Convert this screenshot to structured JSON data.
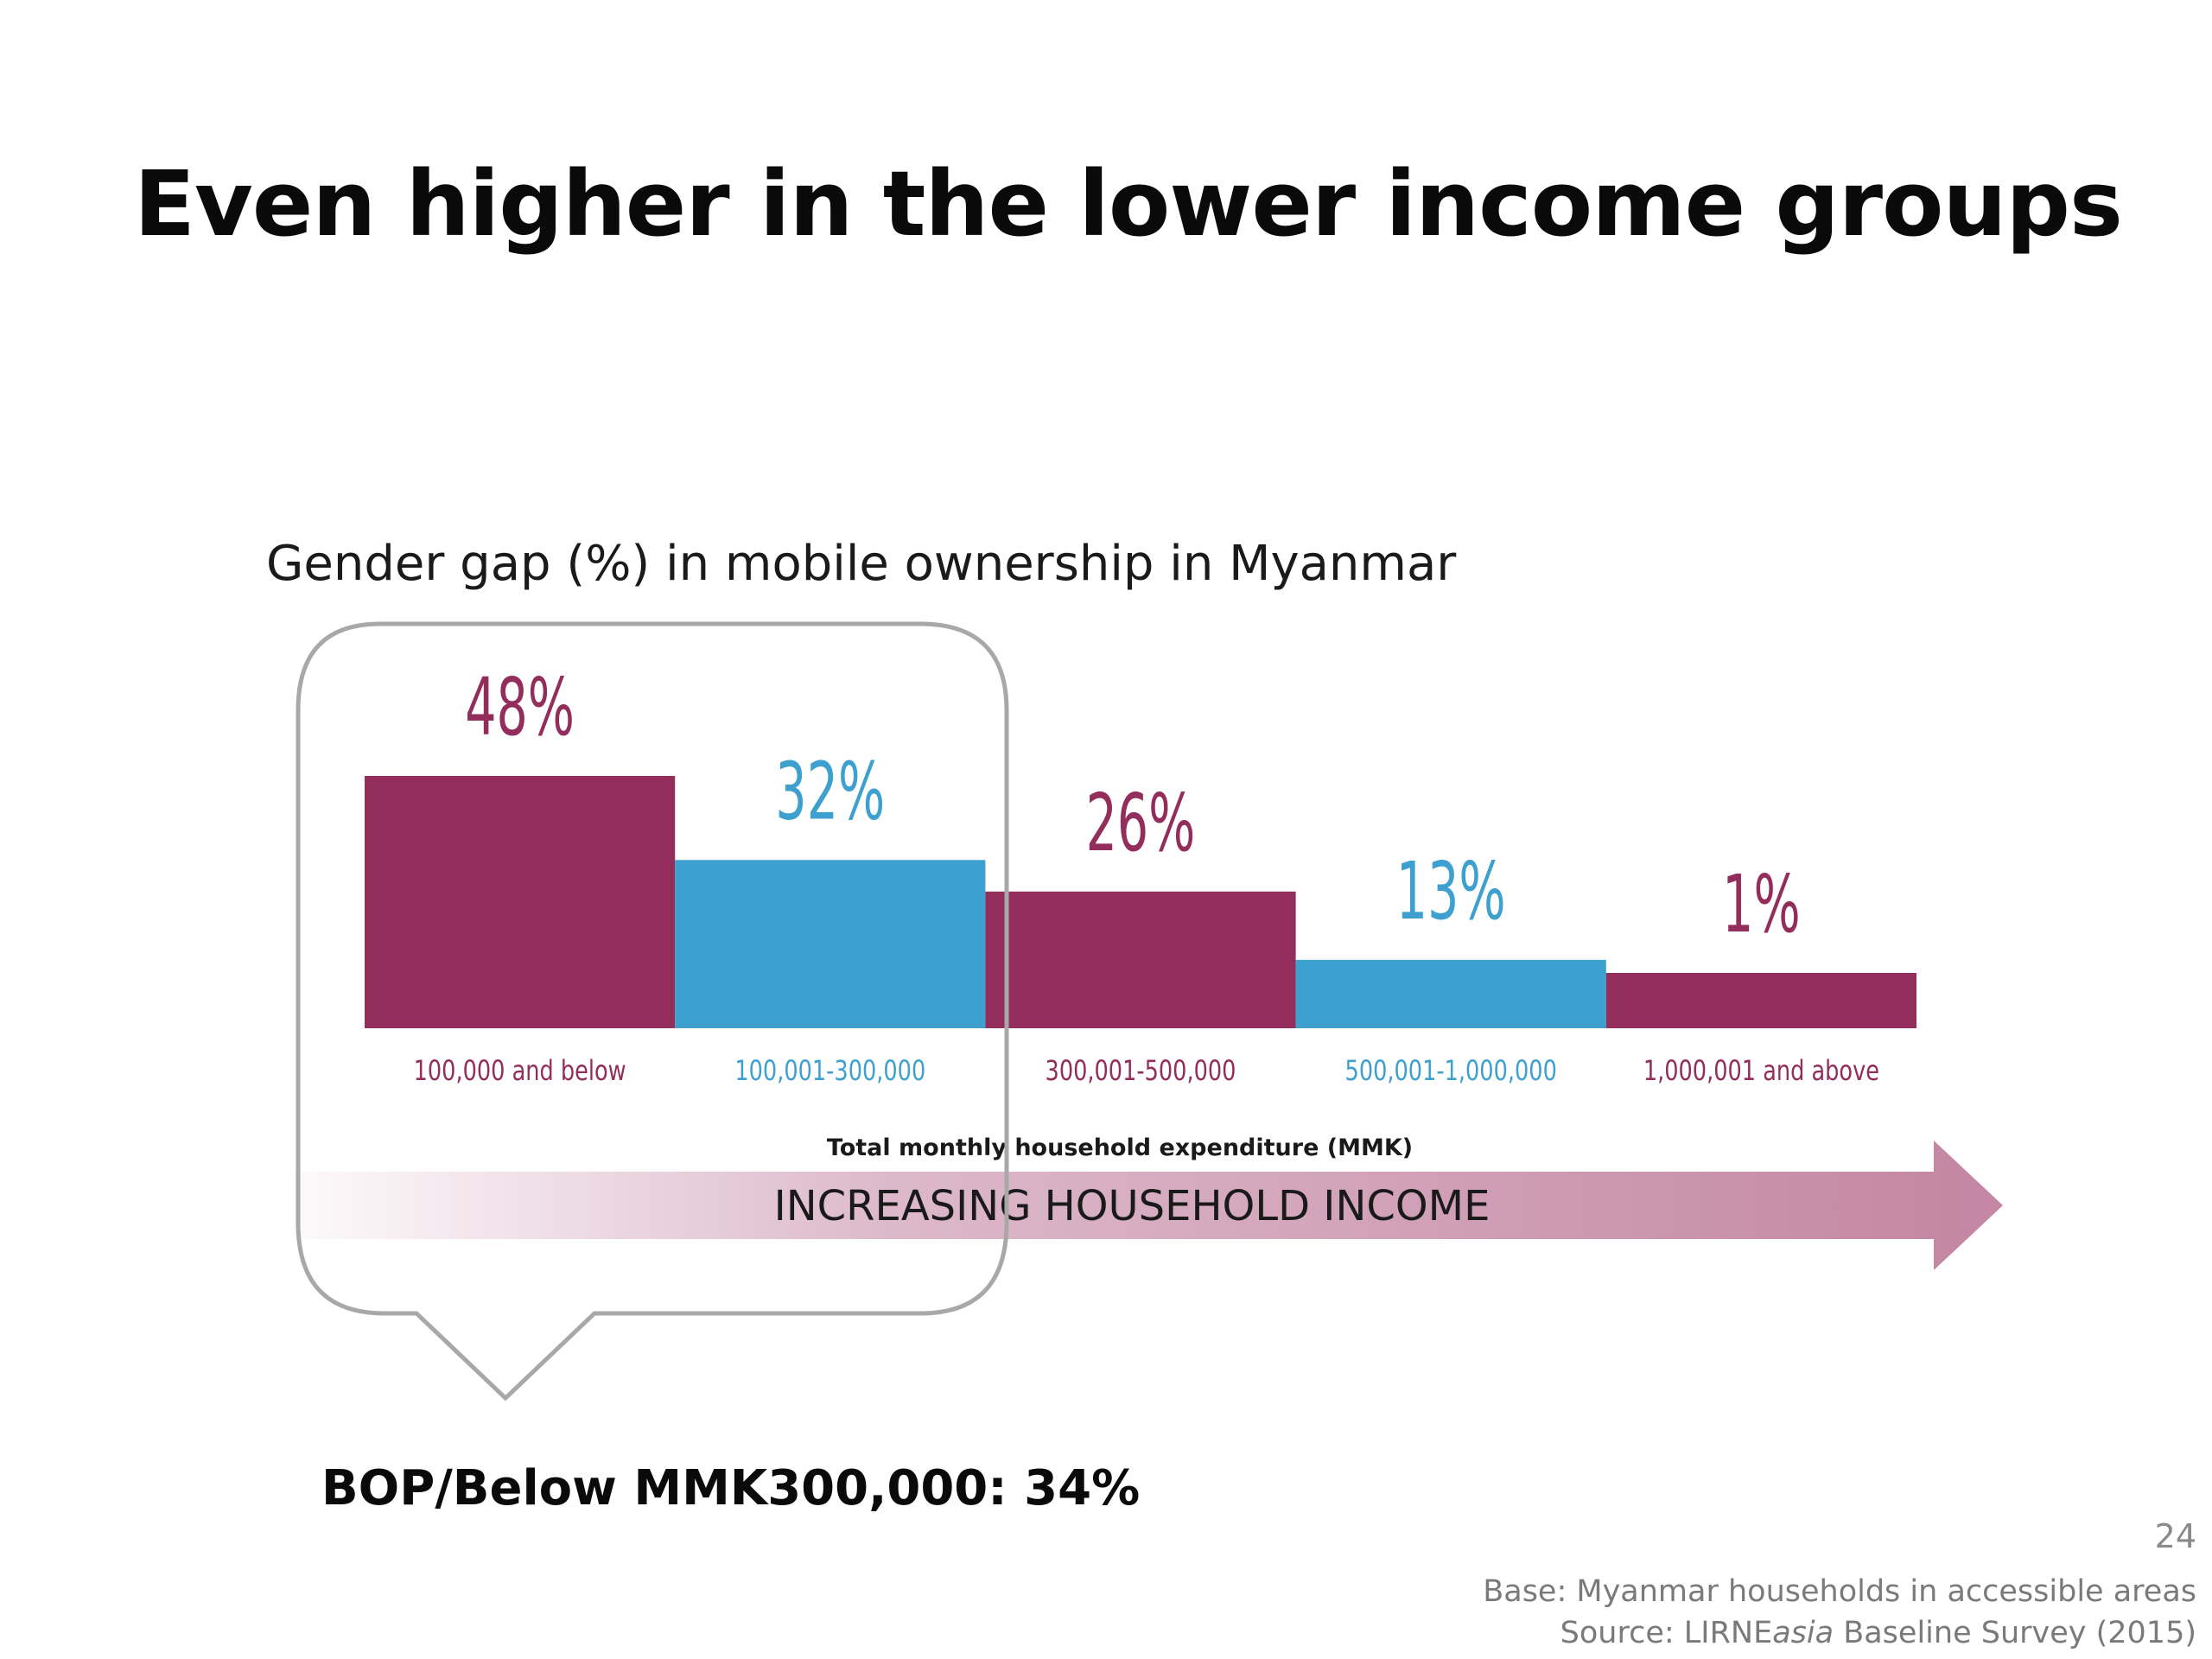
{
  "slide": {
    "title": "Even higher in the lower income groups",
    "page_number": "24",
    "bop_label": "BOP/Below MMK300,000: 34%",
    "footnote_base": "Base: Myanmar households in accessible areas",
    "footnote_source_prefix": "Source: LIRNE",
    "footnote_source_italic": "asia",
    "footnote_source_suffix": " Baseline Survey (2015)",
    "arrow_label": "INCREASING HOUSEHOLD INCOME"
  },
  "chart_data": {
    "type": "bar",
    "title": "Gender gap (%) in mobile ownership in Myanmar",
    "xlabel": "Total monthly household expenditure (MMK)",
    "ylabel": "",
    "categories": [
      "100,000 and below",
      "100,001-300,000",
      "300,001-500,000",
      "500,001-1,000,000",
      "1,000,001 and above"
    ],
    "values": [
      48,
      32,
      26,
      13,
      1
    ],
    "data_labels": [
      "48%",
      "32%",
      "26%",
      "13%",
      "1%"
    ],
    "unit": "%",
    "colors": [
      "#922d5c",
      "#3da0cf",
      "#922d5c",
      "#3da0cf",
      "#922d5c"
    ],
    "grid": false,
    "legend": "none"
  },
  "colors": {
    "magenta": "#922d5c",
    "blue": "#3da0cf",
    "callout_border": "#a8a8a8",
    "arrow": "#c07f9e"
  }
}
